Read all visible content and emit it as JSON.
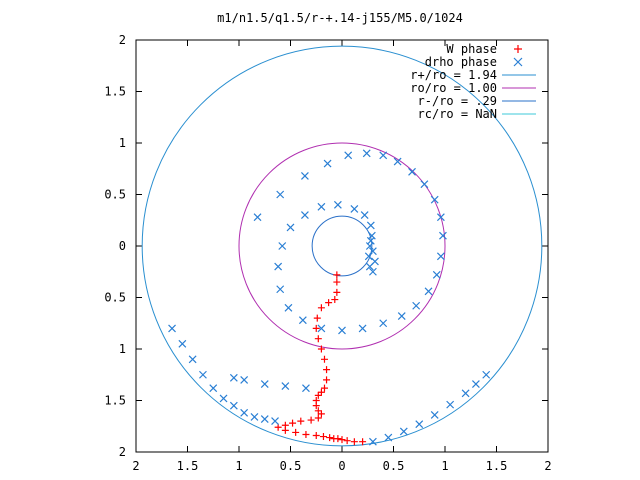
{
  "chart_data": {
    "type": "scatter",
    "title": "m1/n1.5/q1.5/r-+.14-j155/M5.0/1024",
    "xlabel": "",
    "ylabel": "",
    "xlim": [
      -2,
      2
    ],
    "ylim": [
      -2,
      2
    ],
    "grid": false,
    "legend_position": "top-right",
    "x_ticks": [
      "2",
      "1.5",
      "1",
      "0.5",
      "0",
      "0.5",
      "1",
      "1.5",
      "2"
    ],
    "y_ticks": [
      "2",
      "1.5",
      "1",
      "0.5",
      "0",
      "0.5",
      "1",
      "1.5",
      "2"
    ],
    "circles": [
      {
        "label": "r+/ro = 1.94",
        "radius": 1.94,
        "color": "#2a8fd0"
      },
      {
        "label": "ro/ro = 1.00",
        "radius": 1.0,
        "color": "#b02fb0"
      },
      {
        "label": "r-/ro = .29",
        "radius": 0.29,
        "color": "#2a70c8"
      },
      {
        "label": "rc/ro = NaN",
        "radius": null,
        "color": "#3cc8d8"
      }
    ],
    "series": [
      {
        "name": "W phase",
        "marker": "+",
        "color": "#ff0000",
        "x": [
          -0.05,
          -0.05,
          -0.05,
          -0.07,
          -0.13,
          -0.2,
          -0.24,
          -0.25,
          -0.23,
          -0.2,
          -0.17,
          -0.15,
          -0.15,
          -0.17,
          -0.2,
          -0.23,
          -0.25,
          -0.25,
          -0.23,
          -0.2,
          -0.23,
          -0.3,
          -0.4,
          -0.48,
          -0.55,
          -0.62,
          -0.55,
          -0.45,
          -0.35,
          -0.25,
          -0.18,
          -0.12,
          -0.08,
          -0.04,
          0.0,
          0.05,
          0.12,
          0.2
        ],
        "y": [
          -0.28,
          -0.35,
          -0.45,
          -0.52,
          -0.55,
          -0.6,
          -0.7,
          -0.8,
          -0.9,
          -1.0,
          -1.1,
          -1.2,
          -1.3,
          -1.38,
          -1.42,
          -1.45,
          -1.5,
          -1.55,
          -1.6,
          -1.63,
          -1.67,
          -1.69,
          -1.7,
          -1.72,
          -1.74,
          -1.76,
          -1.79,
          -1.81,
          -1.83,
          -1.84,
          -1.85,
          -1.86,
          -1.87,
          -1.87,
          -1.88,
          -1.89,
          -1.9,
          -1.9
        ]
      },
      {
        "name": "drho phase",
        "marker": "x",
        "color": "#2a7fd4",
        "x": [
          0.28,
          0.3,
          0.32,
          0.3,
          0.27,
          0.26,
          0.27,
          0.29,
          0.28,
          0.22,
          0.12,
          -0.04,
          -0.2,
          -0.36,
          -0.5,
          -0.58,
          -0.62,
          -0.6,
          -0.52,
          -0.38,
          -0.2,
          0.0,
          0.2,
          0.4,
          0.58,
          0.72,
          0.84,
          0.92,
          0.96,
          0.98,
          0.96,
          0.9,
          0.8,
          0.68,
          0.54,
          0.4,
          0.24,
          0.06,
          -0.14,
          -0.36,
          -0.6,
          -0.82,
          -1.05,
          -0.95,
          -0.75,
          -0.55,
          -0.35,
          -1.65,
          -1.55,
          -1.45,
          -1.35,
          -1.25,
          -1.15,
          -1.05,
          -0.95,
          -0.85,
          -0.75,
          -0.65,
          0.3,
          0.45,
          0.6,
          0.75,
          0.9,
          1.05,
          1.2,
          1.3,
          1.4
        ],
        "y": [
          0.05,
          -0.05,
          -0.15,
          -0.25,
          -0.2,
          -0.1,
          0.0,
          0.1,
          0.2,
          0.3,
          0.36,
          0.4,
          0.38,
          0.3,
          0.18,
          0.0,
          -0.2,
          -0.42,
          -0.6,
          -0.72,
          -0.8,
          -0.82,
          -0.8,
          -0.75,
          -0.68,
          -0.58,
          -0.44,
          -0.28,
          -0.1,
          0.1,
          0.28,
          0.45,
          0.6,
          0.72,
          0.82,
          0.88,
          0.9,
          0.88,
          0.8,
          0.68,
          0.5,
          0.28,
          -1.28,
          -1.3,
          -1.34,
          -1.36,
          -1.38,
          -0.8,
          -0.95,
          -1.1,
          -1.25,
          -1.38,
          -1.48,
          -1.55,
          -1.62,
          -1.66,
          -1.68,
          -1.7,
          -1.9,
          -1.86,
          -1.8,
          -1.73,
          -1.64,
          -1.54,
          -1.43,
          -1.34,
          -1.25
        ]
      }
    ]
  }
}
